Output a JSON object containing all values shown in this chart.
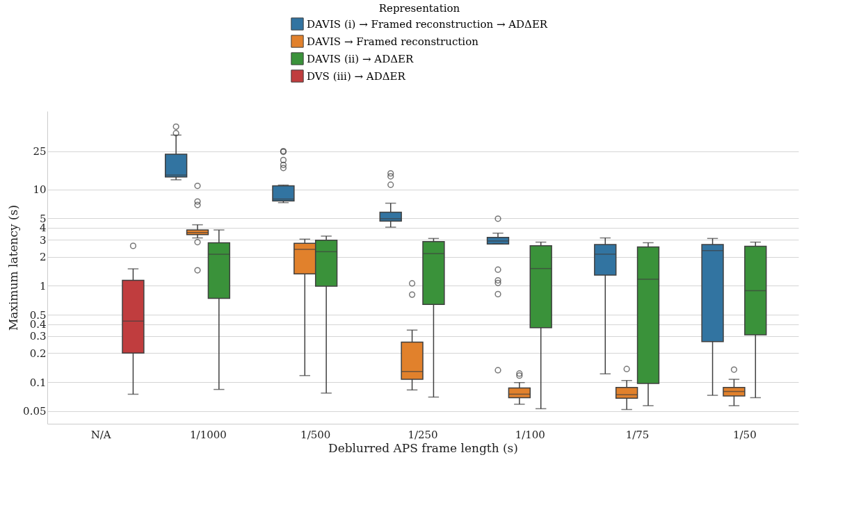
{
  "chart_data": {
    "type": "box",
    "xlabel": "Deblurred APS frame length (s)",
    "ylabel": "Maximum latency (s)",
    "legend_title": "Representation",
    "categories": [
      "N/A",
      "1/1000",
      "1/500",
      "1/250",
      "1/100",
      "1/75",
      "1/50"
    ],
    "series": [
      {
        "name": "DAVIS (i) → Framed reconstruction → ADΔER",
        "color": "#3274a1",
        "boxes": [
          null,
          {
            "low": 12.6,
            "q1": 13.5,
            "median": 14.1,
            "q3": 23.2,
            "high": 36.7,
            "outliers": [
              38.4,
              44.9
            ]
          },
          {
            "low": 7.3,
            "q1": 7.6,
            "median": 7.95,
            "q3": 10.9,
            "high": 11.1,
            "outliers": [
              16.7,
              18.0,
              20.2,
              24.6,
              25.0
            ]
          },
          {
            "low": 4.06,
            "q1": 4.69,
            "median": 4.97,
            "q3": 5.8,
            "high": 7.2,
            "outliers": [
              11.2,
              13.7,
              14.7
            ]
          },
          {
            "low": 2.72,
            "q1": 2.72,
            "median": 2.92,
            "q3": 3.18,
            "high": 3.52,
            "outliers": [
              0.133,
              0.82,
              1.07,
              1.14,
              1.47,
              4.97
            ]
          },
          {
            "low": 0.122,
            "q1": 1.29,
            "median": 2.13,
            "q3": 2.68,
            "high": 3.14
          },
          {
            "low": 0.073,
            "q1": 0.264,
            "median": 2.32,
            "q3": 2.68,
            "high": 3.1
          }
        ]
      },
      {
        "name": "DAVIS → Framed reconstruction",
        "color": "#e1812c",
        "boxes": [
          null,
          {
            "low": 3.14,
            "q1": 3.4,
            "median": 3.57,
            "q3": 3.8,
            "high": 4.3,
            "outliers": [
              1.45,
              2.84,
              6.9,
              7.5,
              10.9
            ]
          },
          {
            "low": 0.117,
            "q1": 1.33,
            "median": 2.39,
            "q3": 2.76,
            "high": 3.05
          },
          {
            "low": 0.083,
            "q1": 0.107,
            "median": 0.129,
            "q3": 0.26,
            "high": 0.347,
            "outliers": [
              0.81,
              1.06
            ]
          },
          {
            "low": 0.059,
            "q1": 0.069,
            "median": 0.075,
            "q3": 0.087,
            "high": 0.099,
            "outliers": [
              0.117,
              0.123
            ]
          },
          {
            "low": 0.052,
            "q1": 0.068,
            "median": 0.074,
            "q3": 0.088,
            "high": 0.104,
            "outliers": [
              0.137
            ]
          },
          {
            "low": 0.057,
            "q1": 0.072,
            "median": 0.08,
            "q3": 0.088,
            "high": 0.107,
            "outliers": [
              0.135
            ]
          }
        ]
      },
      {
        "name": "DAVIS (ii) → ADΔER",
        "color": "#3a923a",
        "boxes": [
          null,
          {
            "low": 0.084,
            "q1": 0.74,
            "median": 2.13,
            "q3": 2.8,
            "high": 3.8
          },
          {
            "low": 0.077,
            "q1": 0.99,
            "median": 2.26,
            "q3": 2.97,
            "high": 3.28
          },
          {
            "low": 0.07,
            "q1": 0.64,
            "median": 2.16,
            "q3": 2.88,
            "high": 3.1
          },
          {
            "low": 0.053,
            "q1": 0.367,
            "median": 1.51,
            "q3": 2.61,
            "high": 2.84
          },
          {
            "low": 0.057,
            "q1": 0.097,
            "median": 1.17,
            "q3": 2.53,
            "high": 2.8
          },
          {
            "low": 0.069,
            "q1": 0.31,
            "median": 0.89,
            "q3": 2.57,
            "high": 2.84
          }
        ]
      },
      {
        "name": "DVS (iii) → ADΔER",
        "color": "#c03d3e",
        "boxes": [
          {
            "low": 0.075,
            "q1": 0.2,
            "median": 0.43,
            "q3": 1.14,
            "high": 1.5,
            "outliers": [
              2.6
            ]
          },
          null,
          null,
          null,
          null,
          null,
          null
        ]
      }
    ],
    "log": true,
    "ylim": [
      0.037,
      65
    ],
    "yticks": [
      0.05,
      0.1,
      0.2,
      0.3,
      0.4,
      0.5,
      1,
      2,
      3,
      4,
      5,
      10,
      25
    ],
    "grid": "y",
    "legend": "top"
  }
}
